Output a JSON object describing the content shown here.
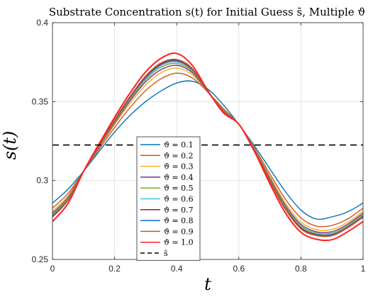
{
  "chart_data": {
    "type": "line",
    "title": "Substrate Concentration s(t) for Initial Guess s̄, Multiple ϑ",
    "xlabel": "t",
    "ylabel": "s(t)",
    "xlim": [
      0,
      1
    ],
    "ylim": [
      0.25,
      0.4
    ],
    "xticks": [
      0,
      0.2,
      0.4,
      0.6,
      0.8,
      1
    ],
    "xtick_labels": [
      "0",
      "0.2",
      "0.4",
      "0.6",
      "0.8",
      "1"
    ],
    "yticks": [
      0.25,
      0.3,
      0.35,
      0.4
    ],
    "ytick_labels": [
      "0.25",
      "0.3",
      "0.35",
      "0.4"
    ],
    "grid": true,
    "legend_position": "center-left",
    "x": [
      0,
      0.05,
      0.1,
      0.15,
      0.2,
      0.25,
      0.3,
      0.35,
      0.4,
      0.45,
      0.5,
      0.55,
      0.6,
      0.65,
      0.7,
      0.75,
      0.8,
      0.85,
      0.9,
      0.95,
      1.0
    ],
    "series": [
      {
        "name": "ϑ = 0.1",
        "color": "#0072BD",
        "values": [
          0.2857,
          0.2945,
          0.3058,
          0.3184,
          0.3307,
          0.3413,
          0.35,
          0.3568,
          0.3618,
          0.3629,
          0.358,
          0.348,
          0.3356,
          0.322,
          0.3074,
          0.293,
          0.2813,
          0.2756,
          0.277,
          0.2801,
          0.2857
        ]
      },
      {
        "name": "ϑ = 0.2",
        "color": "#D95319",
        "values": [
          0.2825,
          0.2918,
          0.3058,
          0.3198,
          0.3336,
          0.3463,
          0.357,
          0.3645,
          0.368,
          0.365,
          0.356,
          0.3457,
          0.3357,
          0.3208,
          0.3042,
          0.2882,
          0.2763,
          0.2711,
          0.2716,
          0.2756,
          0.2825
        ]
      },
      {
        "name": "ϑ = 0.3",
        "color": "#EDB120",
        "values": [
          0.2805,
          0.2902,
          0.3058,
          0.3208,
          0.3355,
          0.349,
          0.3605,
          0.3683,
          0.3712,
          0.367,
          0.356,
          0.3448,
          0.3357,
          0.3202,
          0.3025,
          0.2857,
          0.2737,
          0.2688,
          0.269,
          0.2734,
          0.2805
        ]
      },
      {
        "name": "ϑ = 0.4",
        "color": "#7E2F8E",
        "values": [
          0.2793,
          0.2893,
          0.3058,
          0.3213,
          0.3365,
          0.3505,
          0.3625,
          0.3703,
          0.373,
          0.3683,
          0.3562,
          0.3444,
          0.3357,
          0.3198,
          0.3015,
          0.2843,
          0.2722,
          0.2675,
          0.2676,
          0.2722,
          0.2793
        ]
      },
      {
        "name": "ϑ = 0.5",
        "color": "#77AC30",
        "values": [
          0.2784,
          0.2887,
          0.3058,
          0.3217,
          0.3372,
          0.3515,
          0.3638,
          0.3718,
          0.3742,
          0.3692,
          0.3563,
          0.3441,
          0.3357,
          0.3196,
          0.3008,
          0.2834,
          0.2712,
          0.2667,
          0.2667,
          0.2714,
          0.2784
        ]
      },
      {
        "name": "ϑ = 0.6",
        "color": "#4DBEEE",
        "values": [
          0.2778,
          0.2882,
          0.3058,
          0.3219,
          0.3377,
          0.3522,
          0.3647,
          0.3728,
          0.3751,
          0.3699,
          0.3564,
          0.3439,
          0.3357,
          0.3194,
          0.3003,
          0.2828,
          0.2705,
          0.2661,
          0.2661,
          0.2708,
          0.2778
        ]
      },
      {
        "name": "ϑ = 0.7",
        "color": "#A2142F",
        "values": [
          0.2773,
          0.2878,
          0.3058,
          0.3221,
          0.338,
          0.3527,
          0.3654,
          0.3736,
          0.3758,
          0.3704,
          0.3565,
          0.3438,
          0.3357,
          0.3193,
          0.3,
          0.2823,
          0.27,
          0.2657,
          0.2656,
          0.2704,
          0.2773
        ]
      },
      {
        "name": "ϑ = 0.8",
        "color": "#0072BD",
        "values": [
          0.277,
          0.2876,
          0.3058,
          0.3223,
          0.3383,
          0.3531,
          0.3659,
          0.3742,
          0.3763,
          0.3708,
          0.3565,
          0.3437,
          0.3357,
          0.3192,
          0.2997,
          0.2819,
          0.2696,
          0.2654,
          0.2653,
          0.2701,
          0.277
        ]
      },
      {
        "name": "ϑ = 0.9",
        "color": "#D95319",
        "values": [
          0.2767,
          0.2874,
          0.3058,
          0.3224,
          0.3385,
          0.3534,
          0.3663,
          0.3746,
          0.3767,
          0.3711,
          0.3566,
          0.3436,
          0.3357,
          0.3191,
          0.2995,
          0.2817,
          0.2693,
          0.2651,
          0.265,
          0.2699,
          0.2767
        ]
      },
      {
        "name": "ϑ = 1.0",
        "color": "#FF2020",
        "values": [
          0.274,
          0.2855,
          0.3058,
          0.3232,
          0.34,
          0.3555,
          0.3688,
          0.3775,
          0.3805,
          0.373,
          0.357,
          0.343,
          0.3357,
          0.3185,
          0.298,
          0.2795,
          0.2672,
          0.2628,
          0.2625,
          0.2675,
          0.274
        ]
      }
    ],
    "reference_line": {
      "name": "s̄",
      "color": "#000000",
      "value": 0.3225,
      "style": "dashed"
    }
  }
}
